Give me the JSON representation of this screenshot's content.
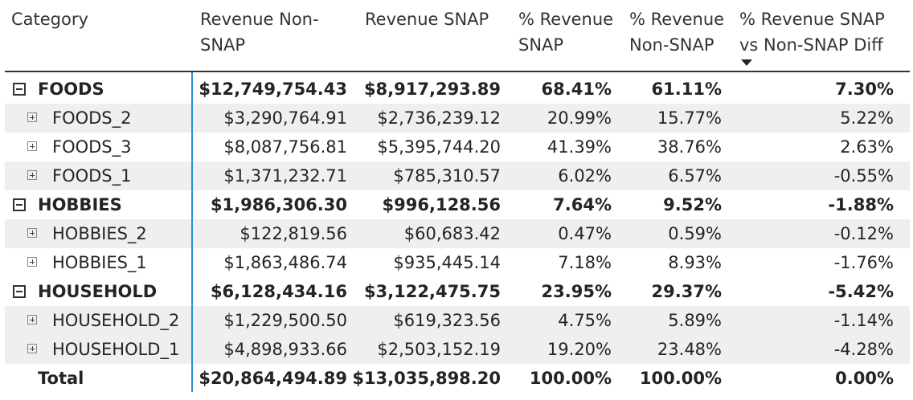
{
  "headers": {
    "category": "Category",
    "revenue_non_snap": [
      "Revenue Non-",
      "SNAP"
    ],
    "revenue_snap": "Revenue SNAP",
    "pct_revenue_snap": [
      "% Revenue",
      "SNAP"
    ],
    "pct_revenue_non_snap": [
      "% Revenue",
      "Non-SNAP"
    ],
    "pct_diff": [
      "% Revenue SNAP",
      "vs Non-SNAP Diff"
    ]
  },
  "sort": {
    "column": "pct_diff",
    "direction": "descending"
  },
  "rows": [
    {
      "level": 0,
      "category": "FOODS",
      "rev_non_snap": "$12,749,754.43",
      "rev_snap": "$8,917,293.89",
      "pct_snap": "68.41%",
      "pct_non_snap": "61.11%",
      "diff": "7.30%"
    },
    {
      "level": 1,
      "category": "FOODS_2",
      "rev_non_snap": "$3,290,764.91",
      "rev_snap": "$2,736,239.12",
      "pct_snap": "20.99%",
      "pct_non_snap": "15.77%",
      "diff": "5.22%"
    },
    {
      "level": 1,
      "category": "FOODS_3",
      "rev_non_snap": "$8,087,756.81",
      "rev_snap": "$5,395,744.20",
      "pct_snap": "41.39%",
      "pct_non_snap": "38.76%",
      "diff": "2.63%"
    },
    {
      "level": 1,
      "category": "FOODS_1",
      "rev_non_snap": "$1,371,232.71",
      "rev_snap": "$785,310.57",
      "pct_snap": "6.02%",
      "pct_non_snap": "6.57%",
      "diff": "-0.55%"
    },
    {
      "level": 0,
      "category": "HOBBIES",
      "rev_non_snap": "$1,986,306.30",
      "rev_snap": "$996,128.56",
      "pct_snap": "7.64%",
      "pct_non_snap": "9.52%",
      "diff": "-1.88%"
    },
    {
      "level": 1,
      "category": "HOBBIES_2",
      "rev_non_snap": "$122,819.56",
      "rev_snap": "$60,683.42",
      "pct_snap": "0.47%",
      "pct_non_snap": "0.59%",
      "diff": "-0.12%"
    },
    {
      "level": 1,
      "category": "HOBBIES_1",
      "rev_non_snap": "$1,863,486.74",
      "rev_snap": "$935,445.14",
      "pct_snap": "7.18%",
      "pct_non_snap": "8.93%",
      "diff": "-1.76%"
    },
    {
      "level": 0,
      "category": "HOUSEHOLD",
      "rev_non_snap": "$6,128,434.16",
      "rev_snap": "$3,122,475.75",
      "pct_snap": "23.95%",
      "pct_non_snap": "29.37%",
      "diff": "-5.42%"
    },
    {
      "level": 1,
      "category": "HOUSEHOLD_2",
      "rev_non_snap": "$1,229,500.50",
      "rev_snap": "$619,323.56",
      "pct_snap": "4.75%",
      "pct_non_snap": "5.89%",
      "diff": "-1.14%"
    },
    {
      "level": 1,
      "category": "HOUSEHOLD_1",
      "rev_non_snap": "$4,898,933.66",
      "rev_snap": "$2,503,152.19",
      "pct_snap": "19.20%",
      "pct_non_snap": "23.48%",
      "diff": "-4.28%"
    }
  ],
  "total": {
    "category": "Total",
    "rev_non_snap": "$20,864,494.89",
    "rev_snap": "$13,035,898.20",
    "pct_snap": "100.00%",
    "pct_non_snap": "100.00%",
    "diff": "0.00%"
  },
  "colors": {
    "accent_line": "#2b8fd6",
    "row_shade": "#efefef",
    "text": "#252423"
  }
}
